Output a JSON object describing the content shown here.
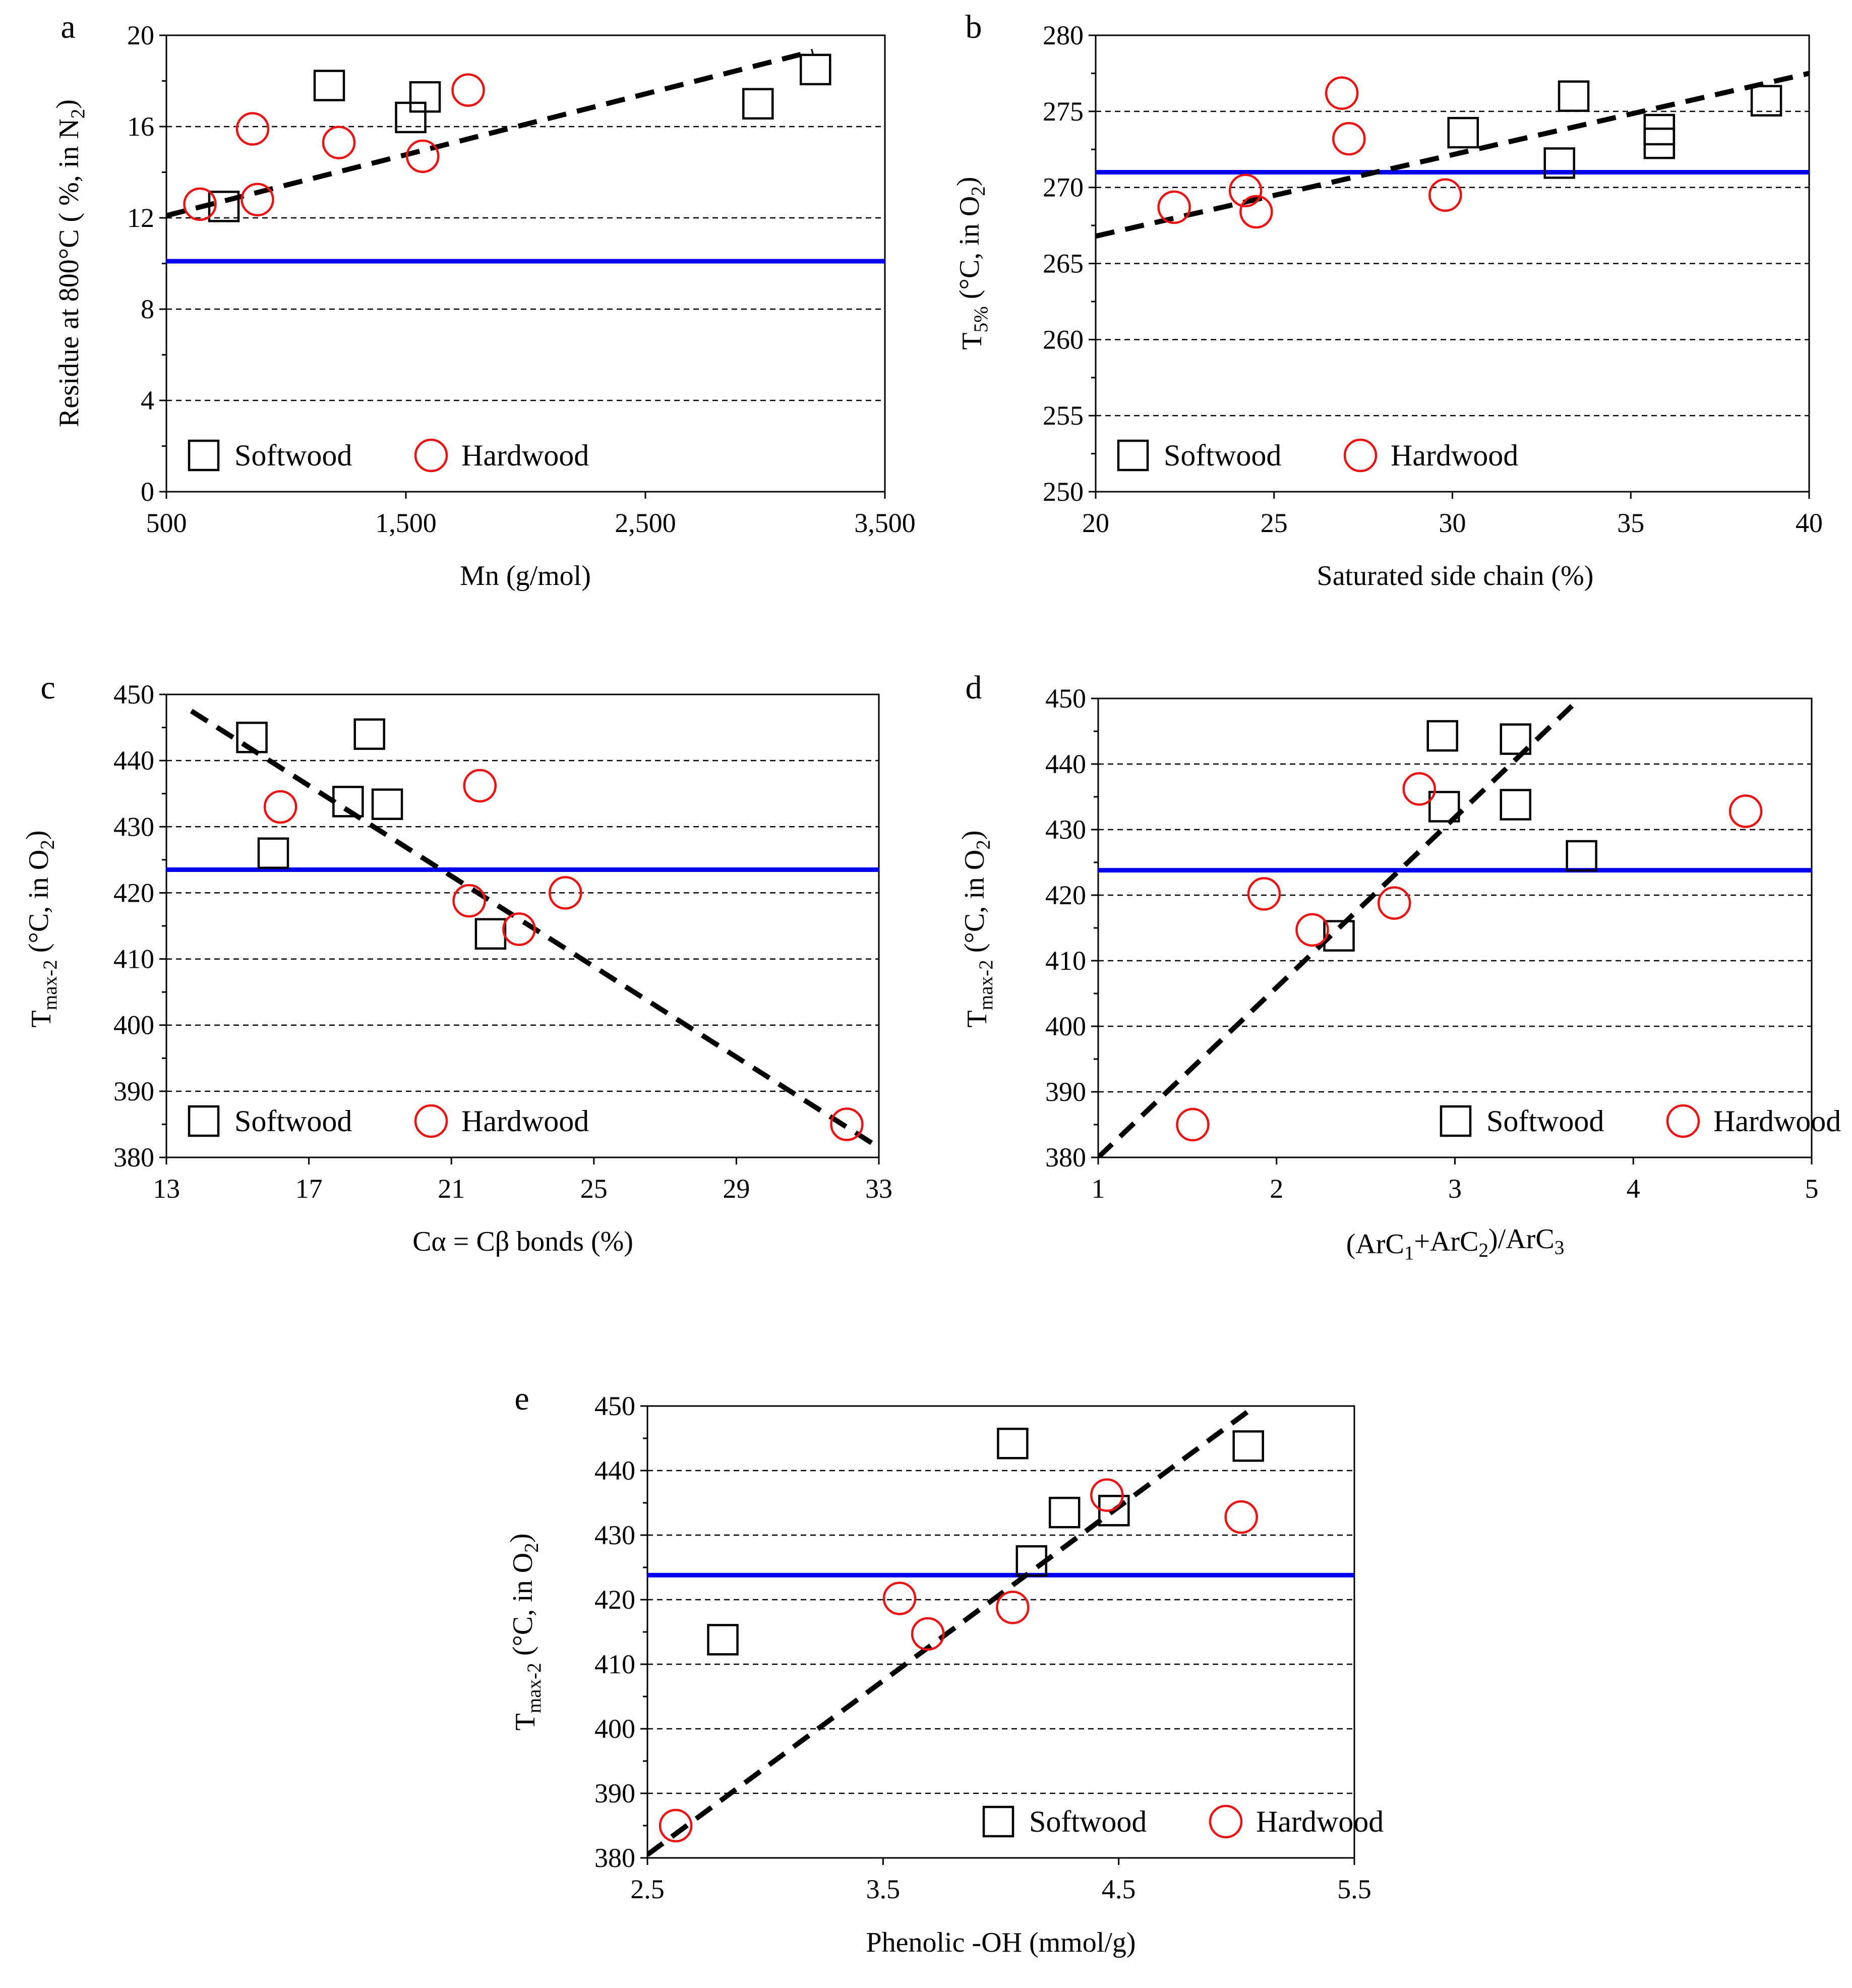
{
  "colors": {
    "blue_line": "#0000ee",
    "hardwood": "#ee1111",
    "softwood": "#000000",
    "fit_line": "#000000",
    "grid": "#000000"
  },
  "chart_data": [
    {
      "id": "a",
      "letter": "a",
      "type": "scatter",
      "xlabel": "Mn (g/mol)",
      "ylabel_parts": [
        {
          "t": "Residue  at 800°C ( %, in N"
        },
        {
          "t": "2",
          "sub": true
        },
        {
          "t": ")"
        }
      ],
      "xlim": [
        500,
        3500
      ],
      "ylim": [
        0,
        20
      ],
      "xticks": [
        500,
        1500,
        2500,
        3500
      ],
      "xtick_labels": [
        "500",
        "1,500",
        "2,500",
        "3,500"
      ],
      "yticks": [
        0,
        4,
        8,
        12,
        16,
        20
      ],
      "ytick_labels": [
        "0",
        "4",
        "8",
        "12",
        "16",
        "20"
      ],
      "y_minor": 2,
      "y_minor_count": 11,
      "gridlines": [
        4,
        8,
        12,
        16
      ],
      "reference_line": 10.1,
      "fit_line": [
        [
          500,
          12.1
        ],
        [
          3200,
          19.3
        ]
      ],
      "series": [
        {
          "name": "Softwood",
          "marker": "square",
          "points": [
            [
              740,
              12.5
            ],
            [
              1180,
              17.8
            ],
            [
              1520,
              16.4
            ],
            [
              1580,
              17.3
            ],
            [
              2970,
              17.0
            ],
            [
              3210,
              18.5
            ]
          ]
        },
        {
          "name": "Hardwood",
          "marker": "circle",
          "points": [
            [
              640,
              12.6
            ],
            [
              860,
              15.9
            ],
            [
              880,
              12.8
            ],
            [
              1220,
              15.3
            ],
            [
              1570,
              14.7
            ],
            [
              1760,
              17.6
            ]
          ]
        }
      ],
      "legend": {
        "position": "bottom-left",
        "labels": [
          "Softwood",
          "Hardwood"
        ]
      }
    },
    {
      "id": "b",
      "letter": "b",
      "type": "scatter",
      "xlabel": "Saturated side chain  (%)",
      "ylabel_parts": [
        {
          "t": "T"
        },
        {
          "t": "5%",
          "sub": true
        },
        {
          "t": " (°C, in O"
        },
        {
          "t": "2",
          "sub": true
        },
        {
          "t": ")"
        }
      ],
      "xlim": [
        20,
        40
      ],
      "ylim": [
        250,
        280
      ],
      "xticks": [
        20,
        25,
        30,
        35,
        40
      ],
      "xtick_labels": [
        "20",
        "25",
        "30",
        "35",
        "40"
      ],
      "yticks": [
        250,
        255,
        260,
        265,
        270,
        275,
        280
      ],
      "ytick_labels": [
        "250",
        "255",
        "260",
        "265",
        "270",
        "275",
        "280"
      ],
      "y_minor": 2.5,
      "y_minor_count": 13,
      "gridlines": [
        255,
        260,
        265,
        270,
        275
      ],
      "reference_line": 271,
      "fit_line": [
        [
          20,
          266.8
        ],
        [
          40,
          277.5
        ]
      ],
      "series": [
        {
          "name": "Softwood",
          "marker": "square",
          "points": [
            [
              30.3,
              273.6
            ],
            [
              33.0,
              271.6
            ],
            [
              33.4,
              276.0
            ],
            [
              35.8,
              273.8
            ],
            [
              35.8,
              272.9
            ],
            [
              38.8,
              275.7
            ]
          ]
        },
        {
          "name": "Hardwood",
          "marker": "circle",
          "points": [
            [
              22.2,
              268.7
            ],
            [
              24.2,
              269.8
            ],
            [
              24.5,
              268.4
            ],
            [
              26.9,
              276.2
            ],
            [
              27.1,
              273.2
            ],
            [
              29.8,
              269.5
            ]
          ]
        }
      ],
      "legend": {
        "position": "bottom-left",
        "labels": [
          "Softwood",
          "Hardwood"
        ]
      }
    },
    {
      "id": "c",
      "letter": "c",
      "type": "scatter",
      "xlabel": "Cα = Cβ bonds (%)",
      "ylabel_parts": [
        {
          "t": "T"
        },
        {
          "t": "max-2",
          "sub": true
        },
        {
          "t": " (°C, in O"
        },
        {
          "t": "2",
          "sub": true
        },
        {
          "t": ")"
        }
      ],
      "xlim": [
        13,
        33
      ],
      "ylim": [
        380,
        450
      ],
      "xticks": [
        13,
        17,
        21,
        25,
        29,
        33
      ],
      "xtick_labels": [
        "13",
        "17",
        "21",
        "25",
        "29",
        "33"
      ],
      "yticks": [
        380,
        390,
        400,
        410,
        420,
        430,
        440,
        450
      ],
      "ytick_labels": [
        "380",
        "390",
        "400",
        "410",
        "420",
        "430",
        "440",
        "450"
      ],
      "y_minor": 5,
      "y_minor_count": 15,
      "gridlines": [
        390,
        400,
        410,
        420,
        430,
        440
      ],
      "reference_line": 423.5,
      "fit_line": [
        [
          13.7,
          447.5
        ],
        [
          33,
          381.5
        ]
      ],
      "series": [
        {
          "name": "Softwood",
          "marker": "square",
          "points": [
            [
              15.4,
              443.5
            ],
            [
              16.0,
              426.0
            ],
            [
              18.1,
              433.8
            ],
            [
              18.7,
              444.0
            ],
            [
              19.2,
              433.4
            ],
            [
              22.1,
              413.8
            ]
          ]
        },
        {
          "name": "Hardwood",
          "marker": "circle",
          "points": [
            [
              16.2,
              433.0
            ],
            [
              21.5,
              418.8
            ],
            [
              21.8,
              436.2
            ],
            [
              22.9,
              414.5
            ],
            [
              24.2,
              420.0
            ],
            [
              32.1,
              385.0
            ]
          ]
        }
      ],
      "legend": {
        "position": "bottom-left",
        "labels": [
          "Softwood",
          "Hardwood"
        ]
      }
    },
    {
      "id": "d",
      "letter": "d",
      "type": "scatter",
      "xlabel_parts": [
        {
          "t": "(ArC"
        },
        {
          "t": "1",
          "sub": true
        },
        {
          "t": "+ArC"
        },
        {
          "t": "2",
          "sub": true
        },
        {
          "t": ")/ArC"
        },
        {
          "t": "3",
          "sub": true
        }
      ],
      "ylabel_parts": [
        {
          "t": "T"
        },
        {
          "t": "max-2",
          "sub": true
        },
        {
          "t": " (°C, in  O"
        },
        {
          "t": "2",
          "sub": true
        },
        {
          "t": ")"
        }
      ],
      "xlim": [
        1,
        5
      ],
      "ylim": [
        380,
        450
      ],
      "xticks": [
        1,
        2,
        3,
        4,
        5
      ],
      "xtick_labels": [
        "1",
        "2",
        "3",
        "4",
        "5"
      ],
      "yticks": [
        380,
        390,
        400,
        410,
        420,
        430,
        440,
        450
      ],
      "ytick_labels": [
        "380",
        "390",
        "400",
        "410",
        "420",
        "430",
        "440",
        "450"
      ],
      "y_minor": 5,
      "y_minor_count": 15,
      "gridlines": [
        390,
        400,
        410,
        420,
        430,
        440
      ],
      "reference_line": 423.8,
      "fit_line": [
        [
          1,
          380
        ],
        [
          3.7,
          450
        ]
      ],
      "series": [
        {
          "name": "Softwood",
          "marker": "square",
          "points": [
            [
              2.35,
              413.8
            ],
            [
              2.93,
              444.3
            ],
            [
              2.94,
              433.5
            ],
            [
              3.34,
              443.8
            ],
            [
              3.34,
              433.8
            ],
            [
              3.71,
              426.0
            ]
          ]
        },
        {
          "name": "Hardwood",
          "marker": "circle",
          "points": [
            [
              1.53,
              385.0
            ],
            [
              1.93,
              420.2
            ],
            [
              2.2,
              414.7
            ],
            [
              2.66,
              418.8
            ],
            [
              2.8,
              436.2
            ],
            [
              4.63,
              432.8
            ]
          ]
        }
      ],
      "legend": {
        "position": "bottom-right",
        "labels": [
          "Softwood",
          "Hardwood"
        ]
      }
    },
    {
      "id": "e",
      "letter": "e",
      "type": "scatter",
      "xlabel": "Phenolic   -OH (mmol/g)",
      "ylabel_parts": [
        {
          "t": "T"
        },
        {
          "t": "max-2",
          "sub": true
        },
        {
          "t": " (°C, in  O"
        },
        {
          "t": "2",
          "sub": true
        },
        {
          "t": ")"
        }
      ],
      "xlim": [
        2.5,
        5.5
      ],
      "ylim": [
        380,
        450
      ],
      "xticks": [
        2.5,
        3.5,
        4.5,
        5.5
      ],
      "xtick_labels": [
        "2.5",
        "3.5",
        "4.5",
        "5.5"
      ],
      "yticks": [
        380,
        390,
        400,
        410,
        420,
        430,
        440,
        450
      ],
      "ytick_labels": [
        "380",
        "390",
        "400",
        "410",
        "420",
        "430",
        "440",
        "450"
      ],
      "y_minor": 5,
      "y_minor_count": 15,
      "gridlines": [
        390,
        400,
        410,
        420,
        430,
        440
      ],
      "reference_line": 423.8,
      "fit_line": [
        [
          2.5,
          380.5
        ],
        [
          5.08,
          450
        ]
      ],
      "series": [
        {
          "name": "Softwood",
          "marker": "square",
          "points": [
            [
              2.82,
              413.8
            ],
            [
              4.05,
              444.2
            ],
            [
              4.13,
              426.0
            ],
            [
              4.27,
              433.5
            ],
            [
              4.48,
              433.8
            ],
            [
              5.05,
              443.8
            ]
          ]
        },
        {
          "name": "Hardwood",
          "marker": "circle",
          "points": [
            [
              2.62,
              385.0
            ],
            [
              3.57,
              420.2
            ],
            [
              3.69,
              414.7
            ],
            [
              4.05,
              418.8
            ],
            [
              4.45,
              436.2
            ],
            [
              5.02,
              432.8
            ]
          ]
        }
      ],
      "legend": {
        "position": "bottom-right",
        "labels": [
          "Softwood",
          "Hardwood"
        ]
      }
    }
  ]
}
